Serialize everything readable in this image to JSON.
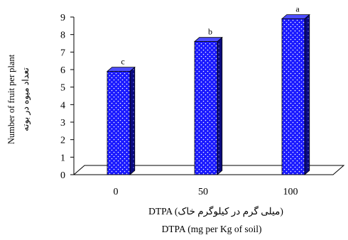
{
  "chart_data": {
    "type": "bar",
    "categories": [
      "0",
      "50",
      "100"
    ],
    "values": [
      5.9,
      7.6,
      8.9
    ],
    "significance_letters": [
      "c",
      "b",
      "a"
    ],
    "ylim": [
      0,
      9
    ],
    "yticks": [
      "0",
      "1",
      "2",
      "3",
      "4",
      "5",
      "6",
      "7",
      "8",
      "9"
    ],
    "ylabel_en": "Number of fruit per plant",
    "ylabel_fa": "تعداد میوه در بوته",
    "xlabel_fa": "DTPA (میلی گرم در کیلوگرم خاک)",
    "xlabel_en": "DTPA (mg per Kg of soil)",
    "grid": false,
    "legend": "none",
    "colors": {
      "bar_front": "#1a1aff",
      "bar_side": "#0a0a80",
      "bar_top": "#4d4dff",
      "axis": "#000000"
    }
  }
}
